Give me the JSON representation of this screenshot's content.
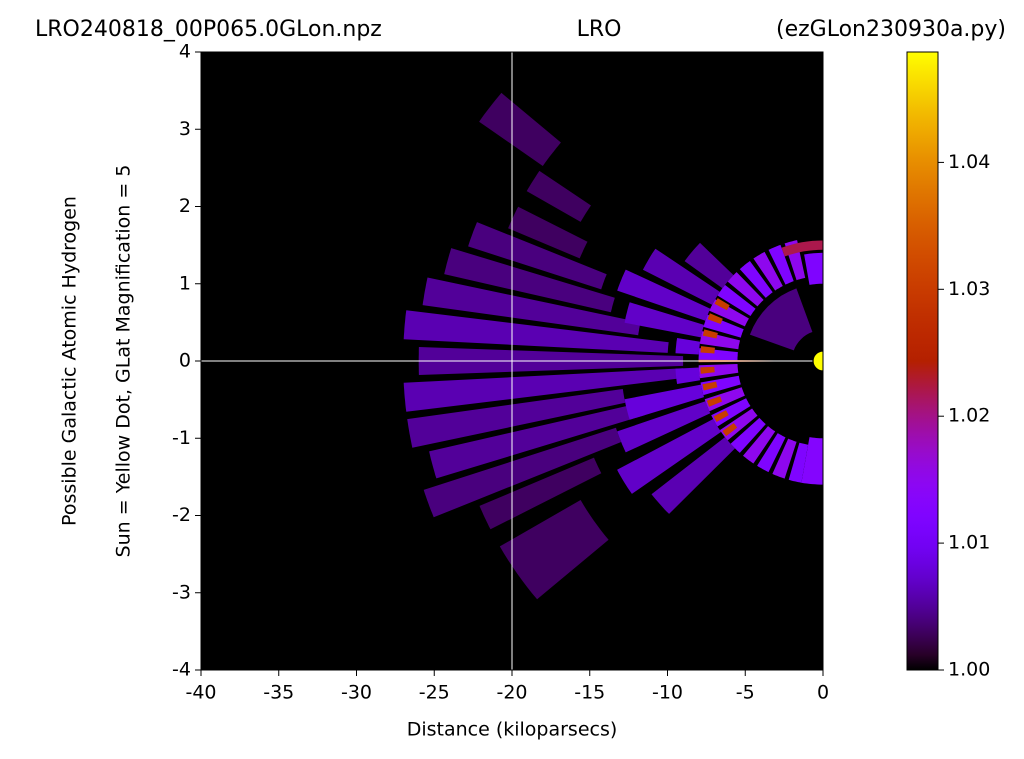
{
  "chart_data": {
    "type": "polar-map",
    "title_left": "LRO240818_00P065.0GLon.npz",
    "title_center": "LRO",
    "title_right": "(ezGLon230930a.py)",
    "xlabel": "Distance (kiloparsecs)",
    "ylabel": [
      "Possible Galactic Atomic Hydrogen",
      "Sun = Yellow Dot, GLat Magnification = 5"
    ],
    "xlim": [
      -40,
      0
    ],
    "xticks": [
      -40,
      -35,
      -30,
      -25,
      -20,
      -15,
      -10,
      -5,
      0
    ],
    "ylim": [
      -4,
      4
    ],
    "yticks": [
      -4,
      -3,
      -2,
      -1,
      0,
      1,
      2,
      3,
      4
    ],
    "colormap": "gnuplot",
    "clim": [
      1.0,
      1.0487
    ],
    "cticks": [
      {
        "value": 1.0,
        "label": "1.00"
      },
      1.01,
      1.02,
      1.03,
      1.04
    ],
    "crosshair": {
      "x": -20,
      "y": 0,
      "color": "#ffffff"
    },
    "sun": {
      "x": 0,
      "y": 0,
      "color": "#ffff00"
    },
    "wedges": [
      {
        "theta": [
          -22,
          -18
        ],
        "r": [
          14,
          27
        ],
        "value": 1.004
      },
      {
        "theta": [
          -17,
          -13
        ],
        "r": [
          12,
          26
        ],
        "value": 1.005
      },
      {
        "theta": [
          -12,
          -8
        ],
        "r": [
          13,
          27
        ],
        "value": 1.005
      },
      {
        "theta": [
          -7,
          -3
        ],
        "r": [
          9,
          27
        ],
        "value": 1.006
      },
      {
        "theta": [
          -2,
          2
        ],
        "r": [
          9,
          26
        ],
        "value": 1.005
      },
      {
        "theta": [
          3,
          7
        ],
        "r": [
          10,
          27
        ],
        "value": 1.006
      },
      {
        "theta": [
          8,
          12
        ],
        "r": [
          12,
          26
        ],
        "value": 1.005
      },
      {
        "theta": [
          13,
          17
        ],
        "r": [
          14,
          25
        ],
        "value": 1.004
      },
      {
        "theta": [
          18,
          22
        ],
        "r": [
          15,
          24
        ],
        "value": 1.004
      },
      {
        "theta": [
          23,
          27
        ],
        "r": [
          17,
          22
        ],
        "value": 1.003
      },
      {
        "theta": [
          -27,
          -23
        ],
        "r": [
          16,
          24
        ],
        "value": 1.003
      },
      {
        "theta": [
          30,
          34
        ],
        "r": [
          18,
          22
        ],
        "value": 1.003
      },
      {
        "theta": [
          35,
          40
        ],
        "r": [
          22,
          27
        ],
        "value": 1.003
      },
      {
        "theta": [
          -40,
          -30
        ],
        "r": [
          18,
          24
        ],
        "value": 1.003
      },
      {
        "theta": [
          -45,
          -38
        ],
        "r": [
          8,
          14
        ],
        "value": 1.006
      },
      {
        "theta": [
          -35,
          -28
        ],
        "r": [
          8,
          15
        ],
        "value": 1.007
      },
      {
        "theta": [
          -25,
          -19
        ],
        "r": [
          8,
          14
        ],
        "value": 1.007
      },
      {
        "theta": [
          -17,
          -11
        ],
        "r": [
          8,
          13
        ],
        "value": 1.008
      },
      {
        "theta": [
          -9,
          -3
        ],
        "r": [
          8,
          9.5
        ],
        "value": 1.008
      },
      {
        "theta": [
          3,
          9
        ],
        "r": [
          8,
          9.5
        ],
        "value": 1.008
      },
      {
        "theta": [
          11,
          17
        ],
        "r": [
          8,
          13
        ],
        "value": 1.007
      },
      {
        "theta": [
          19,
          25
        ],
        "r": [
          8,
          14
        ],
        "value": 1.007
      },
      {
        "theta": [
          27,
          34
        ],
        "r": [
          8,
          13
        ],
        "value": 1.006
      },
      {
        "theta": [
          36,
          44
        ],
        "r": [
          8,
          11
        ],
        "value": 1.005
      },
      {
        "theta": [
          20,
          70
        ],
        "r": [
          2,
          5
        ],
        "value": 1.004
      },
      {
        "theta": [
          -80,
          -74
        ],
        "r": [
          5.5,
          8
        ],
        "value": 1.012
      },
      {
        "theta": [
          -72,
          -66
        ],
        "r": [
          5.5,
          8
        ],
        "value": 1.015
      },
      {
        "theta": [
          -64,
          -58
        ],
        "r": [
          5.5,
          8
        ],
        "value": 1.012
      },
      {
        "theta": [
          -56,
          -50
        ],
        "r": [
          5.5,
          8
        ],
        "value": 1.015
      },
      {
        "theta": [
          -48,
          -42
        ],
        "r": [
          5.5,
          8
        ],
        "value": 1.012
      },
      {
        "theta": [
          -40,
          -34
        ],
        "r": [
          5.5,
          8
        ],
        "value": 1.015
      },
      {
        "theta": [
          -32,
          -26
        ],
        "r": [
          5.5,
          8
        ],
        "value": 1.012
      },
      {
        "theta": [
          -24,
          -18
        ],
        "r": [
          5.5,
          8
        ],
        "value": 1.015
      },
      {
        "theta": [
          -16,
          -10
        ],
        "r": [
          5.5,
          8
        ],
        "value": 1.012
      },
      {
        "theta": [
          -8,
          -2
        ],
        "r": [
          5.5,
          8
        ],
        "value": 1.015
      },
      {
        "theta": [
          0,
          6
        ],
        "r": [
          5.5,
          8
        ],
        "value": 1.012
      },
      {
        "theta": [
          8,
          14
        ],
        "r": [
          5.5,
          8
        ],
        "value": 1.015
      },
      {
        "theta": [
          16,
          22
        ],
        "r": [
          5.5,
          8
        ],
        "value": 1.012
      },
      {
        "theta": [
          24,
          30
        ],
        "r": [
          5.5,
          8
        ],
        "value": 1.015
      },
      {
        "theta": [
          32,
          38
        ],
        "r": [
          5.5,
          8
        ],
        "value": 1.012
      },
      {
        "theta": [
          40,
          46
        ],
        "r": [
          5.5,
          8
        ],
        "value": 1.015
      },
      {
        "theta": [
          48,
          54
        ],
        "r": [
          5.5,
          8
        ],
        "value": 1.012
      },
      {
        "theta": [
          56,
          62
        ],
        "r": [
          5.5,
          8
        ],
        "value": 1.015
      },
      {
        "theta": [
          64,
          70
        ],
        "r": [
          5.5,
          8
        ],
        "value": 1.012
      },
      {
        "theta": [
          72,
          78
        ],
        "r": [
          5.5,
          8
        ],
        "value": 1.015
      },
      {
        "theta": [
          80,
          90
        ],
        "r": [
          5,
          7
        ],
        "value": 1.012
      },
      {
        "theta": [
          -90,
          -80
        ],
        "r": [
          5,
          8
        ],
        "value": 1.013
      },
      {
        "theta": [
          70,
          90
        ],
        "r": [
          7.2,
          7.8
        ],
        "value": 1.022
      },
      {
        "theta": [
          -38,
          -35
        ],
        "r": [
          7,
          7.9
        ],
        "value": 1.03
      },
      {
        "theta": [
          -30,
          -27
        ],
        "r": [
          7,
          7.9
        ],
        "value": 1.03
      },
      {
        "theta": [
          -22,
          -19
        ],
        "r": [
          7,
          7.9
        ],
        "value": 1.03
      },
      {
        "theta": [
          -14,
          -11
        ],
        "r": [
          7,
          7.9
        ],
        "value": 1.03
      },
      {
        "theta": [
          -6,
          -3
        ],
        "r": [
          7,
          7.9
        ],
        "value": 1.03
      },
      {
        "theta": [
          4,
          7
        ],
        "r": [
          7,
          7.9
        ],
        "value": 1.03
      },
      {
        "theta": [
          12,
          15
        ],
        "r": [
          7,
          7.9
        ],
        "value": 1.03
      },
      {
        "theta": [
          20,
          23
        ],
        "r": [
          7,
          7.9
        ],
        "value": 1.03
      },
      {
        "theta": [
          28,
          31
        ],
        "r": [
          7,
          7.9
        ],
        "value": 1.03
      },
      {
        "theta": [
          -0.6,
          0.6
        ],
        "r": [
          0.6,
          8
        ],
        "value": 1.032
      }
    ]
  }
}
